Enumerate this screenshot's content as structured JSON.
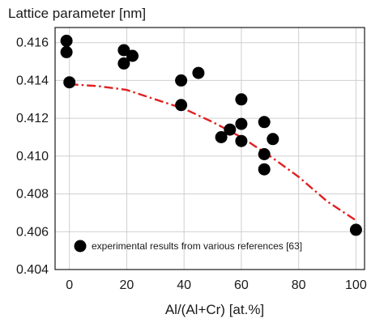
{
  "chart_data": {
    "type": "scatter",
    "title": "",
    "ylabel": "Lattice parameter [nm]",
    "xlabel": "Al/(Al+Cr) [at.%]",
    "xlim": [
      -5,
      103
    ],
    "ylim": [
      0.404,
      0.4168
    ],
    "x_ticks": [
      0,
      20,
      40,
      60,
      80,
      100
    ],
    "x_tick_labels": [
      "0",
      "20",
      "40",
      "60",
      "80",
      "100"
    ],
    "y_ticks": [
      0.404,
      0.406,
      0.408,
      0.41,
      0.412,
      0.414,
      0.416
    ],
    "y_tick_labels": [
      "0.404",
      "0.406",
      "0.408",
      "0.410",
      "0.412",
      "0.414",
      "0.416"
    ],
    "grid": true,
    "legend_position": "bottom-left",
    "series": [
      {
        "name": "experimental results from various references [63]",
        "marker": "filled-circle",
        "color": "#000000",
        "x": [
          -1,
          -1,
          0,
          19,
          19,
          22,
          39,
          39,
          45,
          53,
          56,
          60,
          60,
          60,
          68,
          68,
          68,
          71,
          100
        ],
        "y": [
          0.4161,
          0.4155,
          0.4139,
          0.4156,
          0.4149,
          0.4153,
          0.414,
          0.4127,
          0.4144,
          0.411,
          0.4114,
          0.413,
          0.4117,
          0.4108,
          0.4118,
          0.4101,
          0.4093,
          0.4109,
          0.4061
        ]
      },
      {
        "name": "",
        "line_style": "dash-dot",
        "color": "#e02020",
        "x": [
          0,
          10,
          20,
          30,
          40,
          50,
          60,
          70,
          80,
          90,
          100
        ],
        "y": [
          0.4138,
          0.4137,
          0.4135,
          0.413,
          0.4125,
          0.4118,
          0.411,
          0.41,
          0.4089,
          0.4076,
          0.4066
        ]
      }
    ]
  }
}
